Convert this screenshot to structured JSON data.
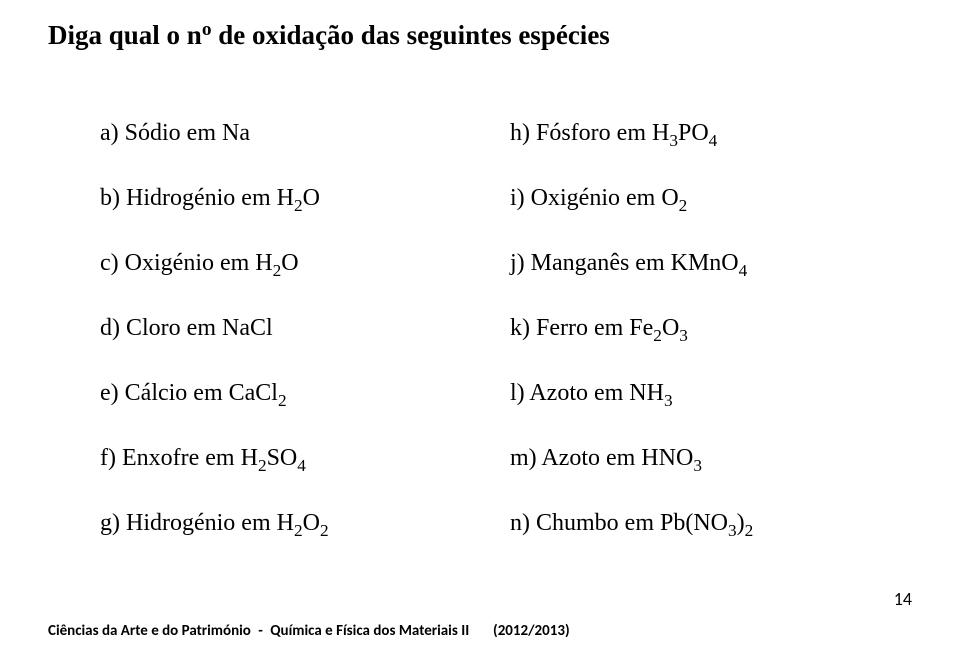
{
  "title": {
    "text_html": "Diga qual o n<span class=\"sup\">o</span> de oxida<span>ç</span>ão das seguintes esp<span>é</span>cies",
    "fontsize": 27,
    "weight": "bold",
    "color": "#000000"
  },
  "columns": {
    "left": {
      "fontsize": 24,
      "items": [
        {
          "html": "a) S<span>ó</span>dio em Na"
        },
        {
          "html": "b) Hidrog<span>é</span>nio em H<span class=\"sub\">2</span>O"
        },
        {
          "html": "c) Oxig<span>é</span>nio em H<span class=\"sub\">2</span>O"
        },
        {
          "html": "d) Cloro em NaCl"
        },
        {
          "html": "e) C<span>á</span>lcio em CaCl<span class=\"sub\">2</span>"
        },
        {
          "html": "f) Enxofre em H<span class=\"sub\">2</span>SO<span class=\"sub\">4</span>"
        },
        {
          "html": "g) Hidrog<span>é</span>nio em H<span class=\"sub\">2</span>O<span class=\"sub\">2</span>"
        }
      ]
    },
    "right": {
      "fontsize": 24,
      "items": [
        {
          "html": "h) F<span>ó</span>sforo em H<span class=\"sub\">3</span>PO<span class=\"sub\">4</span>"
        },
        {
          "html": "i) Oxig<span>é</span>nio em O<span class=\"sub\">2</span>"
        },
        {
          "html": "j) Mangan<span>ê</span>s em KMnO<span class=\"sub\">4</span>"
        },
        {
          "html": "k) Ferro em Fe<span class=\"sub\">2</span>O<span class=\"sub\">3</span>"
        },
        {
          "html": "l) Azoto em NH<span class=\"sub\">3</span>"
        },
        {
          "html": "m) Azoto em HNO<span class=\"sub\">3</span>"
        },
        {
          "html": "n) Chumbo em Pb(NO<span class=\"sub\">3</span>)<span class=\"sub\">2</span>"
        }
      ]
    }
  },
  "footer": {
    "left": "Ciências da Arte e do Património",
    "middle": "Química e Física dos Materiais II",
    "right": "(2012/2013)",
    "fontsize": 15,
    "color": "#000000"
  },
  "page_number": {
    "value": "14",
    "fontsize": 18,
    "color": "#000000"
  },
  "background_color": "#ffffff"
}
